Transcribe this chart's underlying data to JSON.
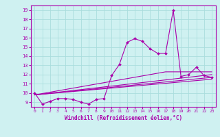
{
  "title": "",
  "xlabel": "Windchill (Refroidissement éolien,°C)",
  "bg_color": "#cff1f1",
  "line_color": "#aa00aa",
  "grid_color": "#aadddd",
  "x_ticks": [
    0,
    1,
    2,
    3,
    4,
    5,
    6,
    7,
    8,
    9,
    10,
    11,
    12,
    13,
    14,
    15,
    16,
    17,
    18,
    19,
    20,
    21,
    22,
    23
  ],
  "y_ticks": [
    9,
    10,
    11,
    12,
    13,
    14,
    15,
    16,
    17,
    18,
    19
  ],
  "xlim": [
    -0.5,
    23.5
  ],
  "ylim": [
    8.5,
    19.5
  ],
  "line1_x": [
    0,
    1,
    2,
    3,
    4,
    5,
    6,
    7,
    8,
    9,
    10,
    11,
    12,
    13,
    14,
    15,
    16,
    17,
    18,
    19,
    20,
    21,
    22,
    23
  ],
  "line1_y": [
    10.0,
    8.8,
    9.1,
    9.4,
    9.4,
    9.3,
    9.0,
    8.8,
    9.3,
    9.4,
    11.9,
    13.1,
    15.5,
    15.9,
    15.6,
    14.8,
    14.3,
    14.3,
    19.0,
    11.8,
    12.0,
    12.8,
    11.9,
    11.7
  ],
  "line2_x": [
    0,
    23
  ],
  "line2_y": [
    9.8,
    11.7
  ],
  "line3_x": [
    0,
    23
  ],
  "line3_y": [
    9.8,
    11.5
  ],
  "line4_x": [
    0,
    23
  ],
  "line4_y": [
    9.8,
    12.0
  ],
  "line5_x": [
    0,
    17,
    23
  ],
  "line5_y": [
    9.8,
    12.3,
    12.3
  ]
}
